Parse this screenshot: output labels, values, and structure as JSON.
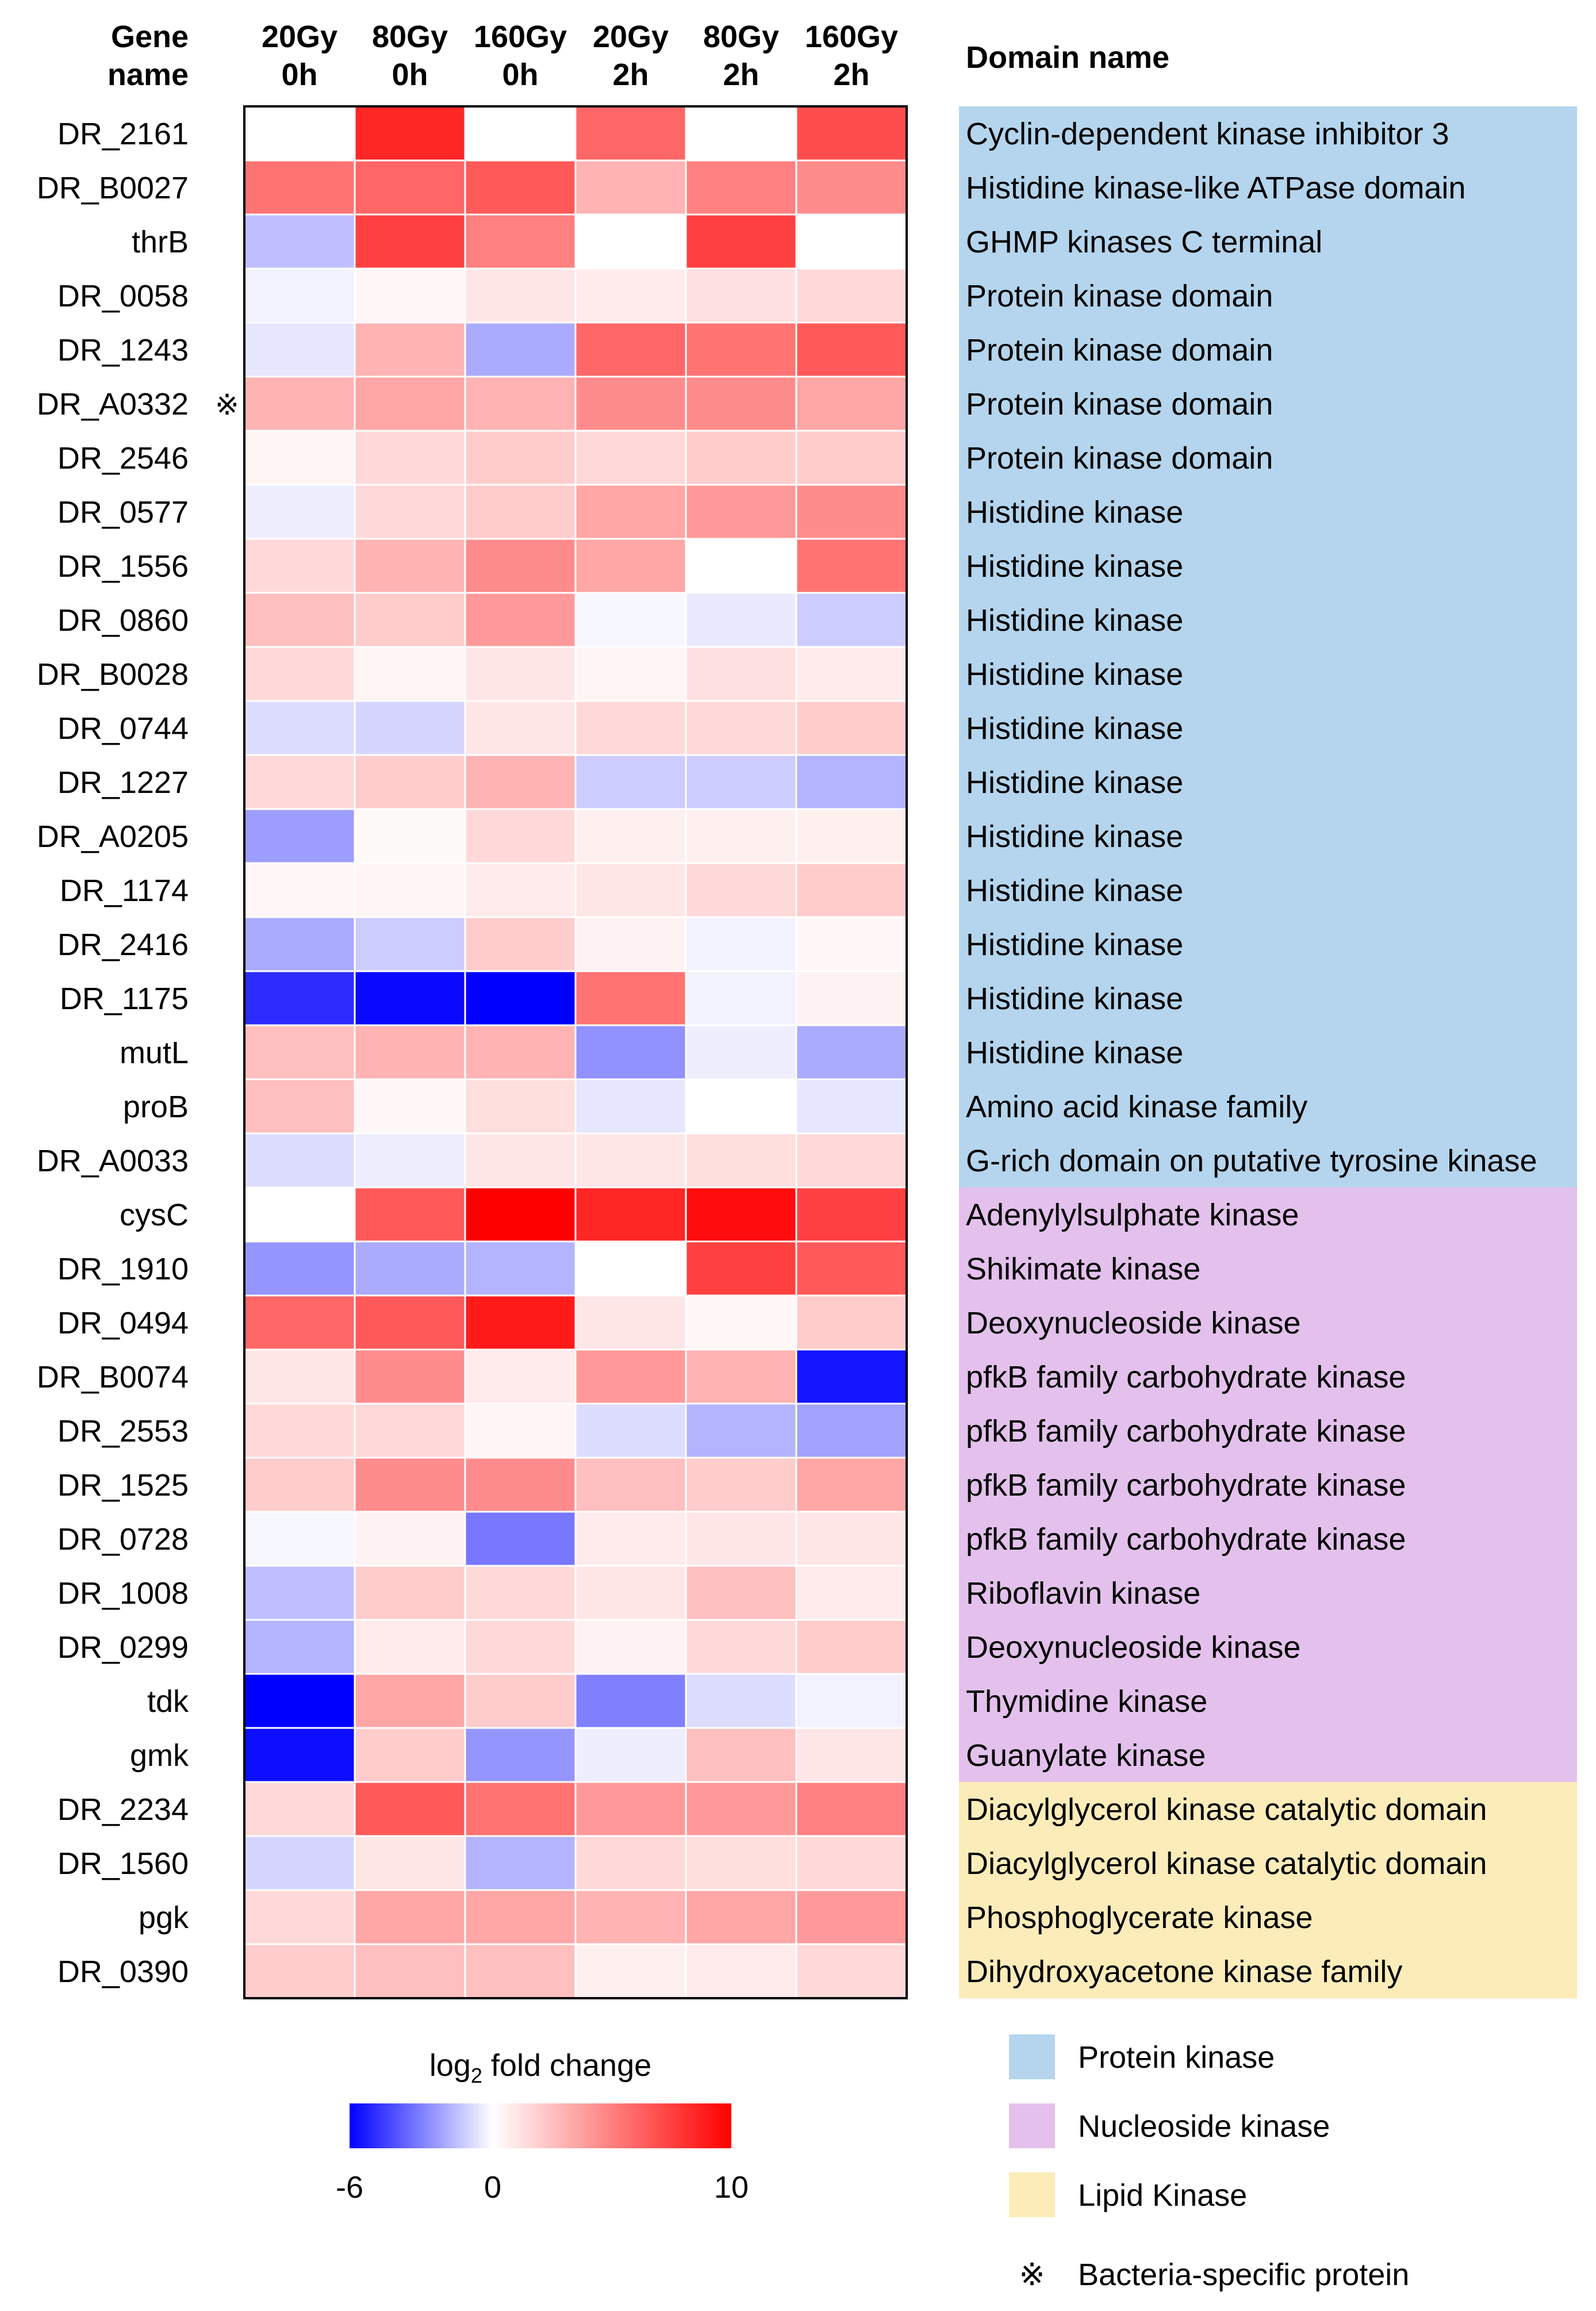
{
  "chart_data": {
    "type": "heatmap",
    "row_header": [
      "Gene",
      "name"
    ],
    "columns": [
      {
        "dose": "20Gy",
        "time": "0h"
      },
      {
        "dose": "80Gy",
        "time": "0h"
      },
      {
        "dose": "160Gy",
        "time": "0h"
      },
      {
        "dose": "20Gy",
        "time": "2h"
      },
      {
        "dose": "80Gy",
        "time": "2h"
      },
      {
        "dose": "160Gy",
        "time": "2h"
      }
    ],
    "domain_header": "Domain name",
    "colorbar": {
      "title_prefix": "log",
      "title_subscript": "2",
      "title_suffix": " fold change",
      "min": -6,
      "mid": 0,
      "max": 10,
      "tick_labels": [
        "-6",
        "0",
        "10"
      ],
      "colors": {
        "low": "#0000ff",
        "mid": "#ffffff",
        "high": "#ff0000"
      }
    },
    "rows": [
      {
        "gene": "DR_2161",
        "values": [
          0,
          8.5,
          0,
          6,
          0,
          7
        ],
        "domain": "Cyclin-dependent kinase inhibitor 3",
        "category": "protein"
      },
      {
        "gene": "DR_B0027",
        "values": [
          5.5,
          6,
          6.5,
          3,
          5,
          4.5
        ],
        "domain": "Histidine kinase-like ATPase domain",
        "category": "protein"
      },
      {
        "gene": "thrB",
        "values": [
          -1.5,
          7.5,
          5,
          0,
          7.5,
          0
        ],
        "domain": "GHMP kinases C terminal",
        "category": "protein"
      },
      {
        "gene": "DR_0058",
        "values": [
          -0.3,
          0.3,
          1,
          0.8,
          1.2,
          1.5
        ],
        "domain": "Protein kinase domain",
        "category": "protein"
      },
      {
        "gene": "DR_1243",
        "values": [
          -0.6,
          3,
          -2,
          6,
          5.5,
          6.5
        ],
        "domain": "Protein kinase domain",
        "category": "protein"
      },
      {
        "gene": "DR_A0332",
        "bacteria_specific": true,
        "mark": "※",
        "values": [
          3,
          3.5,
          3,
          4.5,
          4.5,
          3.5
        ],
        "domain": "Protein kinase domain",
        "category": "protein"
      },
      {
        "gene": "DR_2546",
        "values": [
          0.4,
          1.5,
          2,
          1.5,
          2,
          2
        ],
        "domain": "Protein kinase domain",
        "category": "protein"
      },
      {
        "gene": "DR_0577",
        "values": [
          -0.4,
          1.5,
          2,
          3.5,
          4,
          4.5
        ],
        "domain": "Histidine kinase",
        "category": "protein"
      },
      {
        "gene": "DR_1556",
        "values": [
          1.5,
          3,
          4.5,
          3.5,
          0,
          5.5
        ],
        "domain": "Histidine kinase",
        "category": "protein"
      },
      {
        "gene": "DR_0860",
        "values": [
          2.5,
          2,
          4,
          -0.2,
          -0.5,
          -1.2
        ],
        "domain": "Histidine kinase",
        "category": "protein"
      },
      {
        "gene": "DR_B0028",
        "values": [
          1.5,
          0.4,
          1,
          0.4,
          1.2,
          0.8
        ],
        "domain": "Histidine kinase",
        "category": "protein"
      },
      {
        "gene": "DR_0744",
        "values": [
          -0.8,
          -1,
          1,
          1.5,
          1.5,
          2
        ],
        "domain": "Histidine kinase",
        "category": "protein"
      },
      {
        "gene": "DR_1227",
        "values": [
          1.5,
          2,
          3,
          -1.2,
          -1.2,
          -1.8
        ],
        "domain": "Histidine kinase",
        "category": "protein"
      },
      {
        "gene": "DR_A0205",
        "values": [
          -2.3,
          0.2,
          1.5,
          0.6,
          0.6,
          0.6
        ],
        "domain": "Histidine kinase",
        "category": "protein"
      },
      {
        "gene": "DR_1174",
        "values": [
          0.3,
          0.4,
          0.8,
          1,
          1.5,
          2
        ],
        "domain": "Histidine kinase",
        "category": "protein"
      },
      {
        "gene": "DR_2416",
        "values": [
          -2,
          -1.2,
          2,
          0.5,
          -0.3,
          0.3
        ],
        "domain": "Histidine kinase",
        "category": "protein"
      },
      {
        "gene": "DR_1175",
        "values": [
          -5,
          -5.8,
          -6,
          5.5,
          -0.3,
          0.5
        ],
        "domain": "Histidine kinase",
        "category": "protein"
      },
      {
        "gene": "mutL",
        "values": [
          2.5,
          3,
          3,
          -2.6,
          -0.4,
          -2
        ],
        "domain": "Histidine kinase",
        "category": "protein"
      },
      {
        "gene": "proB",
        "values": [
          2.5,
          0.3,
          1.3,
          -0.6,
          0,
          -0.6
        ],
        "domain": "Amino acid kinase family",
        "category": "protein"
      },
      {
        "gene": "DR_A0033",
        "values": [
          -0.8,
          -0.4,
          1,
          1,
          1.3,
          1.5
        ],
        "domain": "G-rich domain on putative tyrosine kinase",
        "category": "protein"
      },
      {
        "gene": "cysC",
        "values": [
          0,
          6.5,
          10,
          8.5,
          9.5,
          7.5
        ],
        "domain": "Adenylylsulphate kinase",
        "category": "nucleoside"
      },
      {
        "gene": "DR_1910",
        "values": [
          -2.5,
          -2,
          -1.8,
          0,
          7.5,
          6.5
        ],
        "domain": "Shikimate kinase",
        "category": "nucleoside"
      },
      {
        "gene": "DR_0494",
        "values": [
          6,
          6.5,
          9,
          1,
          0.3,
          2
        ],
        "domain": "Deoxynucleoside kinase",
        "category": "nucleoside"
      },
      {
        "gene": "DR_B0074",
        "values": [
          1,
          4.5,
          0.8,
          4,
          3,
          -5.5
        ],
        "domain": "pfkB family carbohydrate kinase",
        "category": "nucleoside"
      },
      {
        "gene": "DR_2553",
        "values": [
          1.5,
          1.5,
          0.4,
          -0.8,
          -1.8,
          -2.2
        ],
        "domain": "pfkB family carbohydrate kinase",
        "category": "nucleoside"
      },
      {
        "gene": "DR_1525",
        "values": [
          2,
          4.5,
          4.5,
          2.5,
          2,
          3.5
        ],
        "domain": "pfkB family carbohydrate kinase",
        "category": "nucleoside"
      },
      {
        "gene": "DR_0728",
        "values": [
          -0.2,
          0.5,
          -3.2,
          0.8,
          1,
          1
        ],
        "domain": "pfkB family carbohydrate kinase",
        "category": "nucleoside"
      },
      {
        "gene": "DR_1008",
        "values": [
          -1.5,
          2,
          1.5,
          1,
          2.5,
          0.8
        ],
        "domain": "Riboflavin kinase",
        "category": "nucleoside"
      },
      {
        "gene": "DR_0299",
        "values": [
          -1.8,
          0.8,
          1.5,
          0.5,
          1.5,
          2
        ],
        "domain": "Deoxynucleoside kinase",
        "category": "nucleoside"
      },
      {
        "gene": "tdk",
        "values": [
          -6,
          3.5,
          2,
          -3,
          -0.8,
          -0.3
        ],
        "domain": "Thymidine kinase",
        "category": "nucleoside"
      },
      {
        "gene": "gmk",
        "values": [
          -5.7,
          2,
          -2.5,
          -0.4,
          2.5,
          1
        ],
        "domain": "Guanylate kinase",
        "category": "nucleoside"
      },
      {
        "gene": "DR_2234",
        "values": [
          1.5,
          6.5,
          5.5,
          4,
          4,
          5
        ],
        "domain": "Diacylglycerol kinase catalytic domain",
        "category": "lipid"
      },
      {
        "gene": "DR_1560",
        "values": [
          -1,
          1,
          -1.8,
          1.5,
          1.3,
          1.5
        ],
        "domain": "Diacylglycerol kinase catalytic domain",
        "category": "lipid"
      },
      {
        "gene": "pgk",
        "values": [
          1.5,
          3.5,
          3.5,
          3,
          3.5,
          4
        ],
        "domain": "Phosphoglycerate kinase",
        "category": "lipid"
      },
      {
        "gene": "DR_0390",
        "values": [
          2,
          2.5,
          2.5,
          0.6,
          0.8,
          1.5
        ],
        "domain": "Dihydroxyacetone kinase family",
        "category": "lipid"
      }
    ],
    "categories": [
      {
        "id": "protein",
        "label": "Protein kinase",
        "color": "#b4d5ed"
      },
      {
        "id": "nucleoside",
        "label": "Nucleoside kinase",
        "color": "#e3c1ec"
      },
      {
        "id": "lipid",
        "label": "Lipid Kinase",
        "color": "#fcecb9"
      }
    ],
    "special_marker": {
      "symbol": "※",
      "label": "Bacteria-specific protein"
    }
  }
}
